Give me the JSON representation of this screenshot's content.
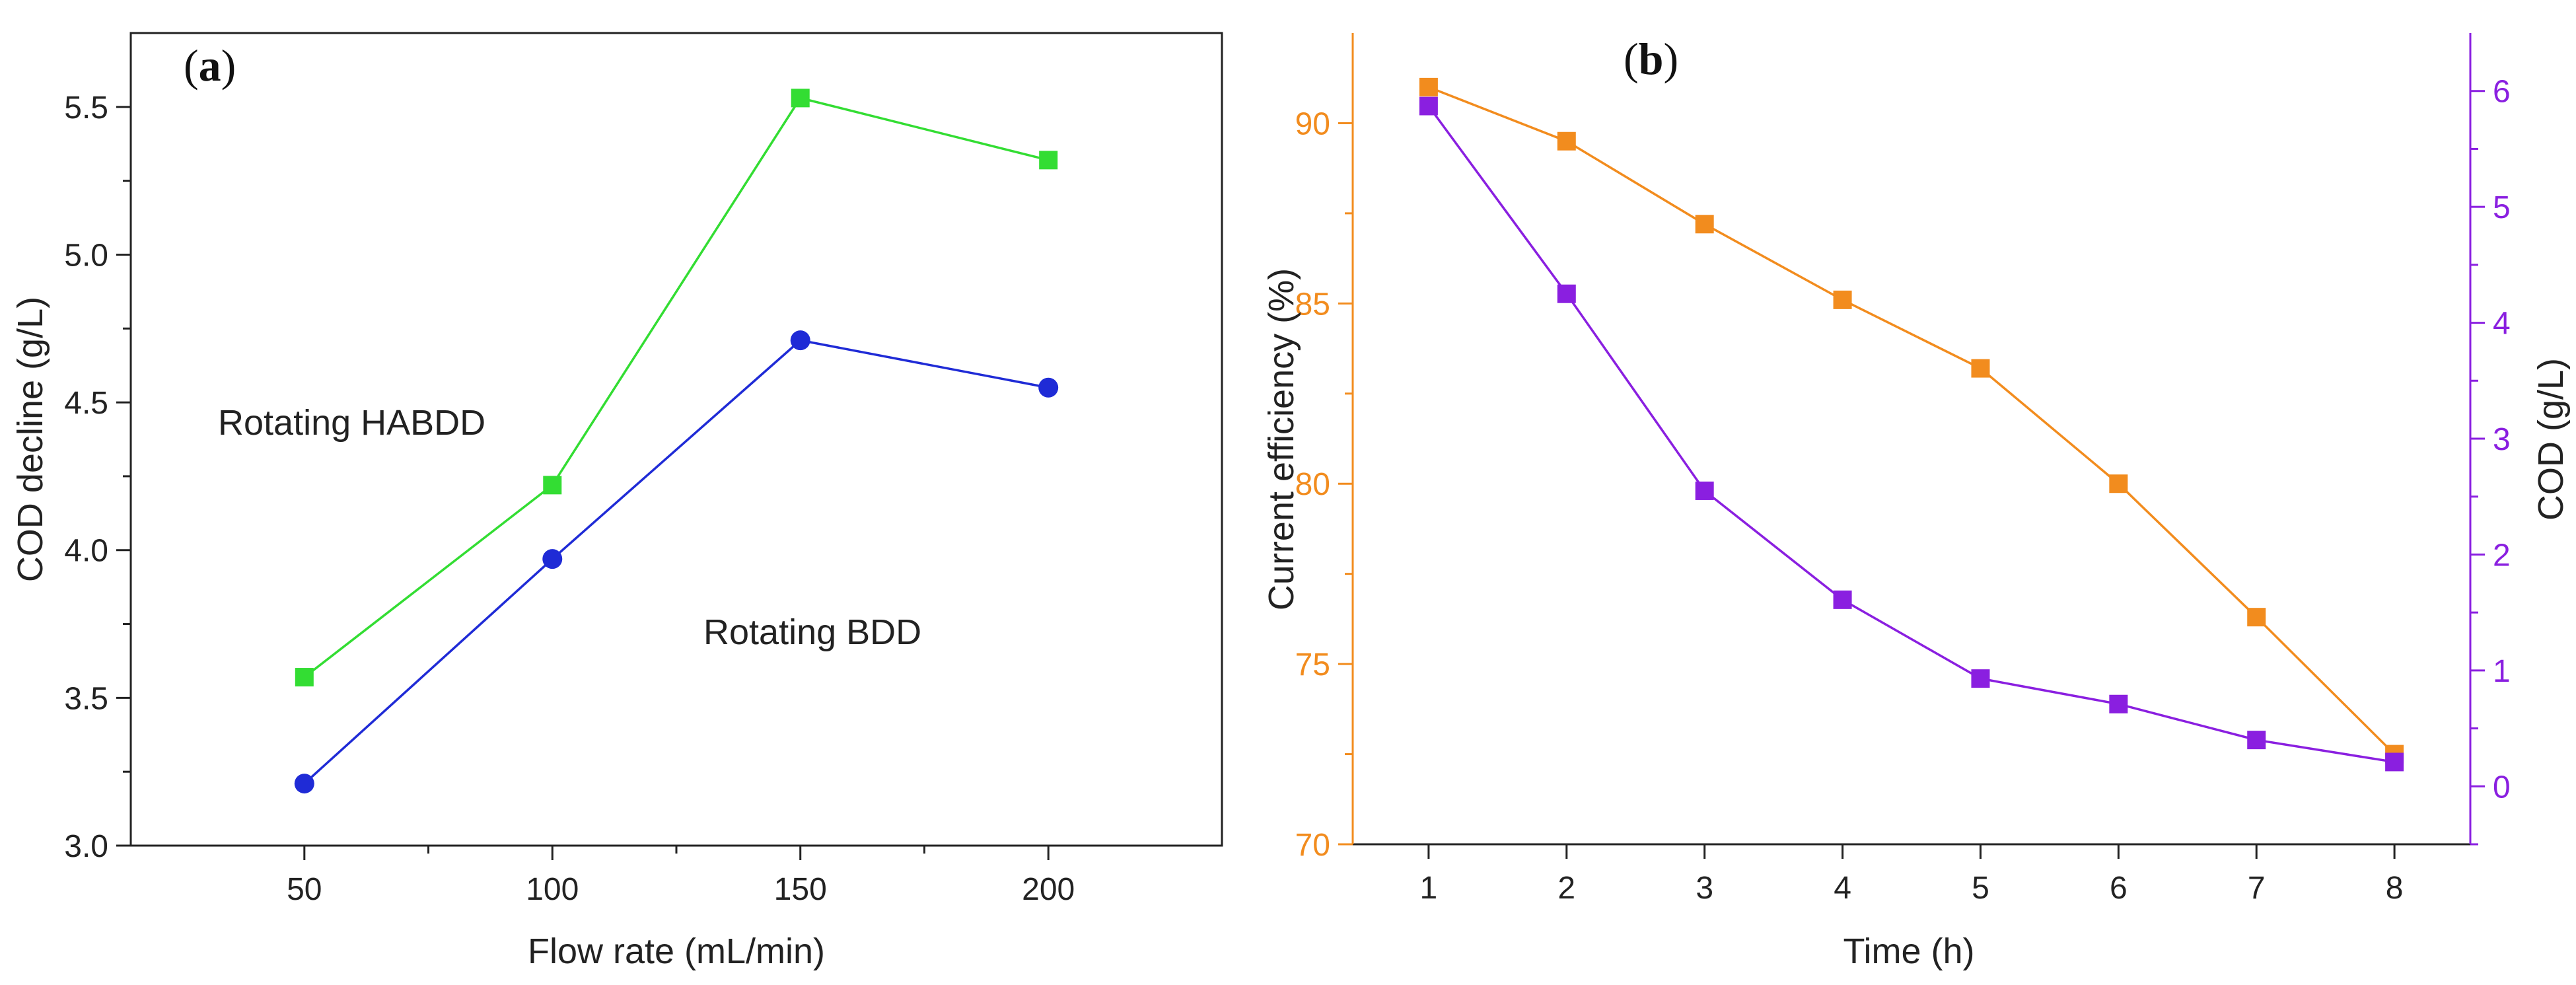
{
  "chart_data": [
    {
      "type": "line",
      "panel_label": "a",
      "xlabel": "Flow rate (mL/min)",
      "ylabel": "COD decline (g/L)",
      "x": [
        50,
        100,
        150,
        200
      ],
      "xlim": [
        15,
        235
      ],
      "ylim": [
        3.0,
        5.75
      ],
      "xticks": [
        50,
        100,
        150,
        200
      ],
      "xtick_labels": [
        "50",
        "100",
        "150",
        "200"
      ],
      "yticks": [
        3.0,
        3.5,
        4.0,
        4.5,
        5.0,
        5.5
      ],
      "ytick_labels": [
        "3.0",
        "3.5",
        "4.0",
        "4.5",
        "5.0",
        "5.5"
      ],
      "series": [
        {
          "name": "Rotating HABDD",
          "values": [
            3.57,
            4.22,
            5.53,
            5.32
          ],
          "color": "#33dd33",
          "marker": "square"
        },
        {
          "name": "Rotating BDD",
          "values": [
            3.21,
            3.97,
            4.71,
            4.55
          ],
          "color": "#1f2bd6",
          "marker": "circle"
        }
      ],
      "annotations": [
        "Rotating HABDD",
        "Rotating BDD"
      ]
    },
    {
      "type": "line",
      "panel_label": "b",
      "xlabel": "Time (h)",
      "ylabel": "Current efficiency (%)",
      "ylabel_right": "COD (g/L)",
      "x": [
        1,
        2,
        3,
        4,
        5,
        6,
        7,
        8
      ],
      "xlim": [
        0.45,
        8.55
      ],
      "ylim": [
        70,
        92.5
      ],
      "ylim_right": [
        -0.5,
        6.5
      ],
      "xticks": [
        1,
        2,
        3,
        4,
        5,
        6,
        7,
        8
      ],
      "xtick_labels": [
        "1",
        "2",
        "3",
        "4",
        "5",
        "6",
        "7",
        "8"
      ],
      "yticks": [
        70,
        75,
        80,
        85,
        90
      ],
      "ytick_labels": [
        "70",
        "75",
        "80",
        "85",
        "90"
      ],
      "yticks_right": [
        0,
        1,
        2,
        3,
        4,
        5,
        6
      ],
      "ytick_labels_right": [
        "0",
        "1",
        "2",
        "3",
        "4",
        "5",
        "6"
      ],
      "series": [
        {
          "name": "Current efficiency",
          "axis": "left",
          "values": [
            91.0,
            89.5,
            87.2,
            85.1,
            83.2,
            80.0,
            76.3,
            72.5
          ],
          "color": "#f28c1e",
          "marker": "square"
        },
        {
          "name": "COD",
          "axis": "right",
          "values": [
            5.87,
            4.25,
            2.55,
            1.61,
            0.93,
            0.71,
            0.4,
            0.21
          ],
          "color": "#8a1fe0",
          "marker": "square"
        }
      ]
    }
  ],
  "colors": {
    "axis": "#222222",
    "left_axis_b": "#f28c1e",
    "right_axis_b": "#8a1fe0"
  }
}
